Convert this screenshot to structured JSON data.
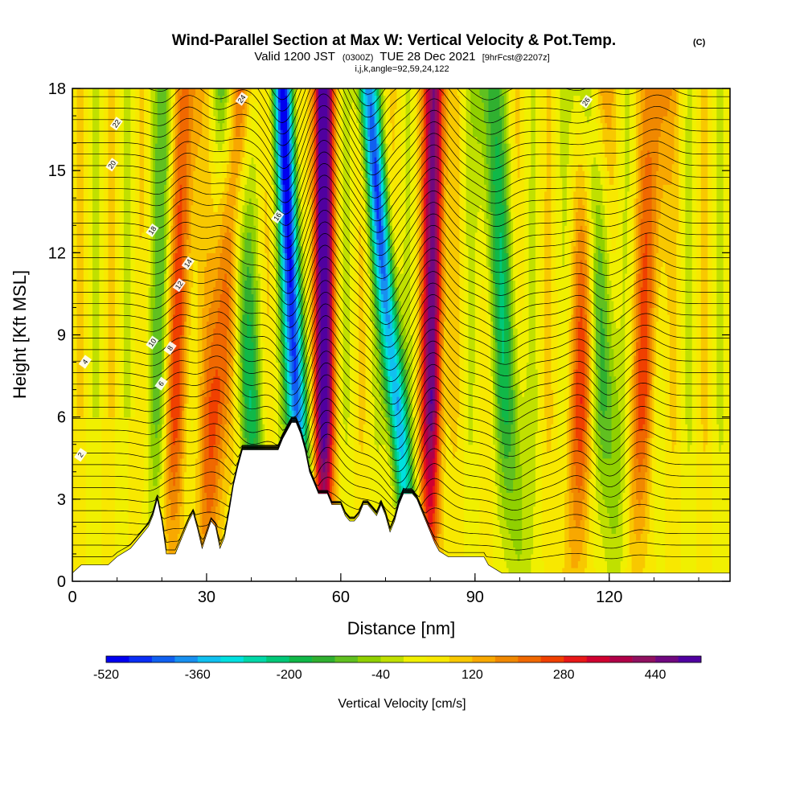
{
  "chart_data": {
    "type": "heatmap",
    "title": "Wind-Parallel Section at Max W: Vertical Velocity & Pot.Temp.",
    "title_mark": "(C)",
    "subtitle_main_a": "Valid 1200 JST",
    "subtitle_small_a": "(0300Z)",
    "subtitle_main_b": "TUE 28 Dec 2021",
    "subtitle_small_b": "[9hrFcst@2207z]",
    "subtitle_line2": "i,j,k,angle=92,59,24,122",
    "xlabel": "Distance [nm]",
    "ylabel": "Height [Kft MSL]",
    "xlim": [
      0,
      147
    ],
    "ylim": [
      0,
      18
    ],
    "x_ticks": [
      0,
      30,
      60,
      90,
      120
    ],
    "y_ticks": [
      0,
      3,
      6,
      9,
      12,
      15,
      18
    ],
    "colorbar": {
      "label": "Vertical Velocity [cm/s]",
      "range": [
        -520,
        520
      ],
      "tick_labels": [
        "-520",
        "-360",
        "-200",
        "-40",
        "120",
        "280",
        "440"
      ],
      "tick_values": [
        -520,
        -360,
        -200,
        -40,
        120,
        280,
        440
      ],
      "colors": [
        "#0000f0",
        "#0a2ef5",
        "#1060f0",
        "#1890f0",
        "#10c0f0",
        "#00e0e0",
        "#00d8a8",
        "#00c878",
        "#10b848",
        "#30b030",
        "#60c020",
        "#90d000",
        "#c0e000",
        "#f0f000",
        "#f8e800",
        "#f8c800",
        "#f8a800",
        "#f08800",
        "#f06800",
        "#f04000",
        "#e81818",
        "#d00030",
        "#b00048",
        "#901060",
        "#700880",
        "#5000a0"
      ]
    },
    "updraft_axes": [
      {
        "x_bottom": 21,
        "x_top": 25,
        "w": 280
      },
      {
        "x_bottom": 30,
        "x_top": 37,
        "w": 250
      },
      {
        "x_bottom": 56,
        "x_top": 56,
        "w": 520
      },
      {
        "x_bottom": 80,
        "x_top": 81,
        "w": 440
      },
      {
        "x_bottom": 112,
        "x_top": 117,
        "w": 200
      },
      {
        "x_bottom": 125,
        "x_top": 131,
        "w": 180
      }
    ],
    "downdraft_axes": [
      {
        "x_bottom": 19,
        "x_top": 22,
        "w": -200
      },
      {
        "x_bottom": 42,
        "x_top": 35,
        "w": -200
      },
      {
        "x_bottom": 52,
        "x_top": 47,
        "w": -520
      },
      {
        "x_bottom": 76,
        "x_top": 66,
        "w": -440
      },
      {
        "x_bottom": 100,
        "x_top": 93,
        "w": -200
      },
      {
        "x_bottom": 122,
        "x_top": 115,
        "w": -200
      }
    ],
    "terrain_kft": [
      [
        0,
        0.3
      ],
      [
        2,
        0.6
      ],
      [
        8,
        0.6
      ],
      [
        10,
        0.9
      ],
      [
        13,
        1.2
      ],
      [
        15,
        1.6
      ],
      [
        17,
        2.0
      ],
      [
        18,
        2.4
      ],
      [
        19,
        3.0
      ],
      [
        20,
        2.2
      ],
      [
        21,
        1.0
      ],
      [
        23,
        1.0
      ],
      [
        25,
        1.8
      ],
      [
        26,
        2.2
      ],
      [
        27,
        2.5
      ],
      [
        28,
        1.9
      ],
      [
        29,
        1.2
      ],
      [
        30,
        1.7
      ],
      [
        31,
        2.2
      ],
      [
        32,
        2.0
      ],
      [
        33,
        1.2
      ],
      [
        34,
        1.6
      ],
      [
        35,
        2.5
      ],
      [
        36,
        3.5
      ],
      [
        37,
        4.2
      ],
      [
        38,
        4.8
      ],
      [
        46,
        4.8
      ],
      [
        47,
        5.2
      ],
      [
        49,
        5.8
      ],
      [
        50,
        5.8
      ],
      [
        51,
        5.4
      ],
      [
        52,
        4.8
      ],
      [
        53,
        4.0
      ],
      [
        54,
        3.6
      ],
      [
        55,
        3.2
      ],
      [
        57,
        3.2
      ],
      [
        58,
        2.8
      ],
      [
        60,
        2.8
      ],
      [
        61,
        2.4
      ],
      [
        62,
        2.2
      ],
      [
        63,
        2.2
      ],
      [
        64,
        2.4
      ],
      [
        65,
        2.8
      ],
      [
        66,
        2.8
      ],
      [
        67,
        2.6
      ],
      [
        68,
        2.4
      ],
      [
        69,
        2.8
      ],
      [
        70,
        2.4
      ],
      [
        71,
        1.8
      ],
      [
        72,
        2.2
      ],
      [
        73,
        2.8
      ],
      [
        74,
        3.2
      ],
      [
        76,
        3.2
      ],
      [
        77,
        3.0
      ],
      [
        78,
        2.6
      ],
      [
        79,
        2.2
      ],
      [
        80,
        1.8
      ],
      [
        81,
        1.4
      ],
      [
        82,
        1.1
      ],
      [
        84,
        0.9
      ],
      [
        92,
        0.9
      ],
      [
        93,
        0.6
      ],
      [
        96,
        0.3
      ],
      [
        147,
        0.3
      ]
    ],
    "theta_series": [
      {
        "name": "2",
        "label_x": 2,
        "label_y": 4.6
      },
      {
        "name": "4",
        "label_x": 3,
        "label_y": 8.0
      },
      {
        "name": "6",
        "label_x": 20,
        "label_y": 7.2
      },
      {
        "name": "8",
        "label_x": 22,
        "label_y": 8.5
      },
      {
        "name": "10",
        "label_x": 18,
        "label_y": 8.7
      },
      {
        "name": "12",
        "label_x": 24,
        "label_y": 10.8
      },
      {
        "name": "14",
        "label_x": 26,
        "label_y": 11.6
      },
      {
        "name": "16",
        "label_x": 46,
        "label_y": 13.3
      },
      {
        "name": "18",
        "label_x": 18,
        "label_y": 12.8
      },
      {
        "name": "20",
        "label_x": 9,
        "label_y": 15.2
      },
      {
        "name": "22",
        "label_x": 10,
        "label_y": 16.7
      },
      {
        "name": "24",
        "label_x": 38,
        "label_y": 17.6
      },
      {
        "name": "26",
        "label_x": 115,
        "label_y": 17.5
      }
    ]
  }
}
